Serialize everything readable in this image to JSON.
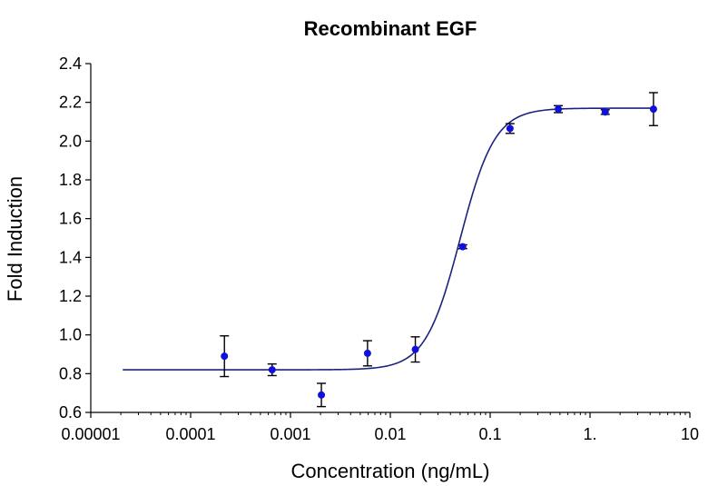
{
  "chart_data": {
    "type": "scatter",
    "title": "Recombinant EGF",
    "xlabel": "Concentration (ng/mL)",
    "ylabel": "Fold Induction",
    "x_scale": "log",
    "xlim": [
      1e-05,
      10
    ],
    "ylim": [
      0.6,
      2.4
    ],
    "x_ticks": [
      1e-05,
      0.0001,
      0.001,
      0.01,
      0.1,
      1,
      10
    ],
    "x_tick_labels": [
      "0.00001",
      "0.0001",
      "0.001",
      "0.01",
      "0.1",
      "1.",
      "10"
    ],
    "y_ticks": [
      0.6,
      0.8,
      1.0,
      1.2,
      1.4,
      1.6,
      1.8,
      2.0,
      2.2,
      2.4
    ],
    "y_tick_labels": [
      "0.6",
      "0.8",
      "1.0",
      "1.2",
      "1.4",
      "1.6",
      "1.8",
      "2.0",
      "2.2",
      "2.4"
    ],
    "grid": false,
    "legend": "none",
    "colors": {
      "points": "#1010dd",
      "curve": "#1a237e",
      "axes": "#000000"
    },
    "points": [
      {
        "x": 0.000218,
        "y": 0.89,
        "err": 0.105
      },
      {
        "x": 0.000655,
        "y": 0.82,
        "err": 0.03
      },
      {
        "x": 0.00204,
        "y": 0.69,
        "err": 0.06
      },
      {
        "x": 0.00591,
        "y": 0.905,
        "err": 0.065
      },
      {
        "x": 0.0178,
        "y": 0.925,
        "err": 0.065
      },
      {
        "x": 0.0531,
        "y": 1.455,
        "err": 0.01
      },
      {
        "x": 0.158,
        "y": 2.065,
        "err": 0.025
      },
      {
        "x": 0.481,
        "y": 2.165,
        "err": 0.018
      },
      {
        "x": 1.42,
        "y": 2.15,
        "err": 0.012
      },
      {
        "x": 4.32,
        "y": 2.165,
        "err": 0.085
      }
    ],
    "fit": {
      "model": "4PL",
      "bottom": 0.82,
      "top": 2.17,
      "ec50": 0.05,
      "hill": 2.5,
      "x_range": [
        2.09e-05,
        4.32
      ]
    }
  }
}
